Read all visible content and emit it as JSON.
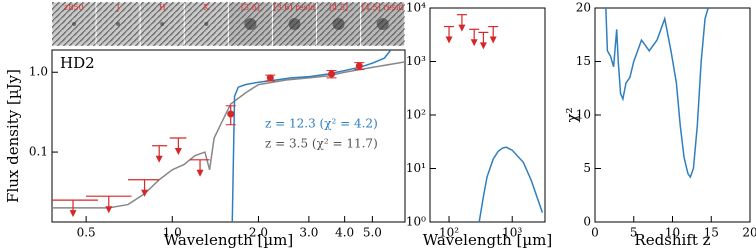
{
  "cutouts": [
    "z850",
    "J",
    "H",
    "K",
    "[3.6]",
    "[3.6] resid",
    "[4.5]",
    "[4.5] resid"
  ],
  "chart_data": [
    {
      "type": "line",
      "label": "HD2",
      "xlabel": "Wavelength [µm]",
      "ylabel": "Flux density [µJy]",
      "xlog": true,
      "ylog": true,
      "xlim": [
        0.38,
        6.5
      ],
      "ylim": [
        0.0133,
        1.9
      ],
      "xticks": [
        0.5,
        {
          "value": 1,
          "label": "1.0"
        },
        {
          "value": 2,
          "label": "2.0"
        },
        {
          "value": 3,
          "label": "3.0"
        },
        {
          "value": 4,
          "label": "4.0"
        },
        {
          "value": 5,
          "label": "5.0"
        }
      ],
      "yticks": [
        0.1,
        {
          "value": 1,
          "label": "1.0"
        }
      ],
      "annotations": [
        {
          "text": "z = 12.3 (χ² = 4.2)",
          "color": "#2f7fbf"
        },
        {
          "text": "z = 3.5 (χ² = 11.7)",
          "color": "#555555"
        }
      ],
      "series": [
        {
          "kind": "line",
          "color": "#888888",
          "x": [
            0.38,
            0.6,
            0.7,
            0.8,
            0.9,
            1.0,
            1.1,
            1.2,
            1.3,
            1.35,
            1.4,
            1.5,
            1.6,
            1.8,
            2.0,
            2.5,
            3.0,
            3.5,
            4.0,
            5.0,
            6.5
          ],
          "values": [
            0.02,
            0.02,
            0.022,
            0.03,
            0.045,
            0.06,
            0.07,
            0.09,
            0.1,
            0.06,
            0.15,
            0.25,
            0.4,
            0.55,
            0.7,
            0.8,
            0.85,
            0.9,
            1.0,
            1.15,
            1.35
          ]
        },
        {
          "kind": "line",
          "color": "#2f7fbf",
          "x": [
            1.62,
            1.65,
            1.7,
            1.8,
            2.0,
            2.3,
            2.6,
            3.0,
            3.5,
            4.0,
            4.5,
            5.0,
            5.5,
            5.8
          ],
          "values": [
            0.0133,
            0.5,
            0.65,
            0.7,
            0.75,
            0.8,
            0.85,
            0.88,
            0.95,
            1.05,
            1.15,
            1.3,
            1.5,
            1.9
          ]
        },
        {
          "kind": "upper_limit",
          "color": "#d62728",
          "x": [
            0.45,
            0.6,
            0.8,
            0.9,
            1.05,
            1.25
          ],
          "xmin": [
            0.38,
            0.5,
            0.7,
            0.85,
            0.98,
            1.15
          ],
          "xmax": [
            0.55,
            0.72,
            0.9,
            0.96,
            1.12,
            1.35
          ],
          "values": [
            0.025,
            0.028,
            0.045,
            0.12,
            0.15,
            0.08
          ]
        },
        {
          "kind": "errorbar",
          "color": "#d62728",
          "x": [
            1.6,
            2.2,
            3.6,
            4.5
          ],
          "values": [
            0.3,
            0.85,
            0.95,
            1.2
          ],
          "errors": [
            0.08,
            0.07,
            0.1,
            0.12
          ]
        }
      ]
    },
    {
      "type": "line",
      "xlabel": "Wavelength [µm]",
      "xlog": true,
      "ylog": true,
      "xlim": [
        50,
        3300
      ],
      "ylim": [
        1,
        10000
      ],
      "xticks": [
        {
          "value": 100,
          "label": "10²"
        },
        {
          "value": 1000,
          "label": "10³"
        }
      ],
      "yticks": [
        {
          "value": 1,
          "label": "10⁰"
        },
        {
          "value": 10,
          "label": "10¹"
        },
        {
          "value": 100,
          "label": "10²"
        },
        {
          "value": 1000,
          "label": "10³"
        },
        {
          "value": 10000,
          "label": "10⁴"
        }
      ],
      "series": [
        {
          "kind": "upper_limit",
          "color": "#d62728",
          "x": [
            100,
            160,
            250,
            350,
            500
          ],
          "values": [
            4500,
            7500,
            4000,
            3500,
            4500
          ]
        },
        {
          "kind": "line",
          "color": "#2f7fbf",
          "x": [
            300,
            350,
            400,
            500,
            600,
            700,
            800,
            1000,
            1500,
            2000,
            3000
          ],
          "values": [
            1,
            3,
            7,
            15,
            21,
            24,
            25,
            22,
            13,
            6,
            1.5
          ]
        }
      ]
    },
    {
      "type": "line",
      "xlabel": "Redshift z",
      "ylabel": "χ²",
      "xlim": [
        0,
        20
      ],
      "ylim": [
        0,
        20
      ],
      "xticks": [
        0,
        5,
        10,
        15,
        20
      ],
      "yticks": [
        0,
        5,
        10,
        15,
        20
      ],
      "series": [
        {
          "kind": "line",
          "color": "#2f7fbf",
          "x": [
            1.4,
            1.6,
            2.0,
            2.4,
            2.8,
            3.0,
            3.3,
            3.6,
            4.0,
            4.5,
            5.0,
            6.0,
            7.0,
            8.0,
            9.0,
            9.8,
            10.5,
            11.0,
            11.5,
            12.0,
            12.3,
            12.7,
            13.2,
            13.7,
            14.2,
            14.6
          ],
          "values": [
            20,
            16,
            15.5,
            14.5,
            18,
            15,
            12,
            11.5,
            13,
            13.5,
            15,
            17,
            16,
            17,
            19,
            16,
            13,
            9,
            6,
            4.5,
            4.2,
            5,
            9,
            15,
            19,
            20
          ]
        }
      ]
    }
  ]
}
